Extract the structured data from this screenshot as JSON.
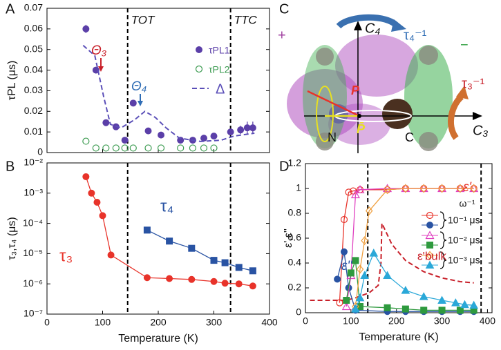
{
  "chart_data": [
    {
      "type": "scatter",
      "panel": "A",
      "ylabel": "τPL (μs)",
      "xlim": [
        0,
        400
      ],
      "xticks": [
        0,
        100,
        200,
        300,
        400
      ],
      "xtick_labels": false,
      "ylim": [
        0,
        0.07
      ],
      "yticks": [
        0,
        0.01,
        0.02,
        0.03,
        0.04,
        0.05,
        0.06,
        0.07
      ],
      "vlines": [
        {
          "value": 145,
          "label": "TOT"
        },
        {
          "value": 330,
          "label": "TTC"
        }
      ],
      "annotations": [
        {
          "text": "Θ₃",
          "color": "#c8202a"
        },
        {
          "text": "Θ₄",
          "color": "#2f6db5"
        }
      ],
      "series": [
        {
          "name": "τPL1",
          "color": "#5b3fa8",
          "marker": "filled-circle",
          "x": [
            70,
            88,
            106,
            124,
            140,
            155,
            182,
            205,
            240,
            262,
            282,
            300,
            330,
            348,
            360,
            370
          ],
          "values": [
            0.06,
            0.04,
            0.0145,
            0.0125,
            0.006,
            0.024,
            0.0105,
            0.0085,
            0.006,
            0.006,
            0.007,
            0.008,
            0.01,
            0.011,
            0.012,
            0.012
          ],
          "errors": [
            0.002,
            0.0015,
            0.0005,
            0.0005,
            0.0004,
            0.0015,
            0.0005,
            0.0005,
            0.0004,
            0.0004,
            0.0004,
            0.0005,
            0.0015,
            0.002,
            0.003,
            0.003
          ]
        },
        {
          "name": "τPL2",
          "color": "#3a9a4f",
          "marker": "open-circle",
          "x": [
            70,
            88,
            106,
            124,
            140,
            155,
            182,
            205,
            240,
            262,
            282,
            300
          ],
          "values": [
            0.0055,
            0.0022,
            0.0022,
            0.0022,
            0.0022,
            0.0022,
            0.0022,
            0.0022,
            0.0022,
            0.0022,
            0.0022,
            0.0022
          ]
        },
        {
          "name": "Δ",
          "color": "#5b4fb8",
          "line": "dashed",
          "x": [
            65,
            86,
            102,
            114,
            133,
            158,
            176,
            195,
            214,
            238,
            276,
            313,
            336,
            373
          ],
          "values": [
            0.052,
            0.047,
            0.027,
            0.0137,
            0.012,
            0.016,
            0.02,
            0.017,
            0.012,
            0.007,
            0.0054,
            0.006,
            0.008,
            0.0094
          ]
        }
      ]
    },
    {
      "type": "line",
      "panel": "B",
      "ylabel": "τ₃,τ₄ (μs)",
      "xlabel": "Temperature (K)",
      "log": true,
      "xlim": [
        0,
        400
      ],
      "xticks": [
        0,
        100,
        200,
        300,
        400
      ],
      "ylim": [
        1e-07,
        0.01
      ],
      "yticks": [
        {
          "value": 1e-07,
          "label": "10⁻⁷"
        },
        {
          "value": 1e-06,
          "label": "10⁻⁶"
        },
        {
          "value": 1e-05,
          "label": "10⁻⁵"
        },
        {
          "value": 0.0001,
          "label": "10⁻⁴"
        },
        {
          "value": 0.001,
          "label": "10⁻³"
        },
        {
          "value": 0.01,
          "label": "10⁻²"
        }
      ],
      "vlines": [
        {
          "value": 145
        },
        {
          "value": 330
        }
      ],
      "series": [
        {
          "name": "τ₃",
          "color": "#e8332a",
          "marker": "filled-circle",
          "line": "solid",
          "x": [
            70,
            80,
            90,
            100,
            115,
            180,
            220,
            260,
            300,
            320,
            345,
            370
          ],
          "values": [
            0.0035,
            0.001,
            0.0005,
            0.00018,
            9e-06,
            1.6e-06,
            1.5e-06,
            1.4e-06,
            1.2e-06,
            1.05e-06,
            1e-06,
            8.5e-07
          ]
        },
        {
          "name": "τ₄",
          "color": "#2953a3",
          "marker": "filled-square",
          "line": "solid",
          "x": [
            180,
            220,
            260,
            300,
            320,
            345,
            370
          ],
          "values": [
            6e-05,
            2.6e-05,
            1.5e-05,
            6e-06,
            5e-06,
            3.5e-06,
            2.7e-06
          ]
        }
      ]
    },
    {
      "type": "line",
      "panel": "D",
      "ylabel": "ε',ε''",
      "xlabel": "Temperature (K)",
      "xlim": [
        0,
        410
      ],
      "xticks": [
        0,
        100,
        200,
        300,
        400
      ],
      "ylim": [
        0,
        1.2
      ],
      "yticks": [
        0,
        0.2,
        0.4,
        0.6,
        0.8,
        1,
        1.2
      ],
      "vlines": [
        {
          "value": 137
        },
        {
          "value": 386
        }
      ],
      "annotations": [
        {
          "text": "ε'",
          "color": "#e8332a"
        },
        {
          "text": "ε''",
          "color": "#2953a3"
        }
      ],
      "legend_title": "ω⁻¹",
      "series": [
        {
          "name": "10⁻¹ μs",
          "real": {
            "color": "#e8332a",
            "marker": "open-circle",
            "line": "solid",
            "x": [
              75,
              85,
              95,
              105,
              120,
              180,
              220,
              260,
              300,
              340,
              370
            ],
            "values": [
              0.08,
              0.75,
              0.97,
              0.98,
              0.99,
              0.99,
              1,
              1,
              1,
              1,
              1
            ]
          },
          "imag": {
            "color": "#2953a3",
            "marker": "filled-circle",
            "line": "solid",
            "x": [
              70,
              85,
              95,
              110,
              180,
              220,
              260,
              300,
              340,
              370
            ],
            "values": [
              0.27,
              0.49,
              0.2,
              0.02,
              0.01,
              0.01,
              0.01,
              0.01,
              0.01,
              0.01
            ]
          }
        },
        {
          "name": "10⁻² μs",
          "real": {
            "color": "#e040c0",
            "marker": "open-triangle",
            "line": "solid",
            "x": [
              90,
              100,
              110,
              120,
              180,
              220,
              260,
              300,
              340,
              370
            ],
            "values": [
              0.05,
              0.3,
              0.95,
              0.99,
              1,
              1,
              1,
              1,
              1,
              1
            ]
          },
          "imag": {
            "color": "#2e9a3e",
            "marker": "filled-square",
            "line": "solid",
            "x": [
              90,
              100,
              110,
              120,
              180,
              220,
              260,
              300,
              340,
              370
            ],
            "values": [
              0.1,
              0.32,
              0.42,
              0.05,
              0.04,
              0.03,
              0.02,
              0.02,
              0.02,
              0.02
            ]
          }
        },
        {
          "name": "10⁻³ μs",
          "real": {
            "color": "#f0a040",
            "marker": "open-diamond",
            "line": "solid",
            "x": [
              110,
              120,
              130,
              140,
              180,
              220,
              260,
              300,
              340,
              370
            ],
            "values": [
              0.05,
              0.35,
              0.58,
              0.82,
              0.99,
              1,
              1,
              1,
              1,
              1
            ]
          },
          "imag": {
            "color": "#2aa8d8",
            "marker": "filled-triangle",
            "line": "solid",
            "x": [
              110,
              120,
              130,
              150,
              180,
              220,
              260,
              300,
              330,
              350,
              370
            ],
            "values": [
              0.03,
              0.12,
              0.3,
              0.48,
              0.3,
              0.18,
              0.13,
              0.1,
              0.08,
              0.065,
              0.06
            ]
          }
        }
      ],
      "bulk": {
        "name": "ε'bulk",
        "color": "#c8202a",
        "line": "dashed",
        "x": [
          10,
          90,
          110,
          140,
          160,
          166,
          168,
          190,
          220,
          260,
          300,
          340,
          370
        ],
        "values": [
          0.1,
          0.1,
          0.12,
          0.16,
          0.22,
          0.4,
          0.72,
          0.55,
          0.42,
          0.33,
          0.28,
          0.25,
          0.24
        ]
      }
    }
  ],
  "diagram": {
    "panel": "C",
    "plus": "+",
    "minus": "−",
    "c4": "C₄",
    "tau4": "τ₄⁻¹",
    "tau3": "τ₃⁻¹",
    "c3": "C₃",
    "p": "P",
    "pbar": "P̄",
    "n": "N",
    "c": "C"
  }
}
